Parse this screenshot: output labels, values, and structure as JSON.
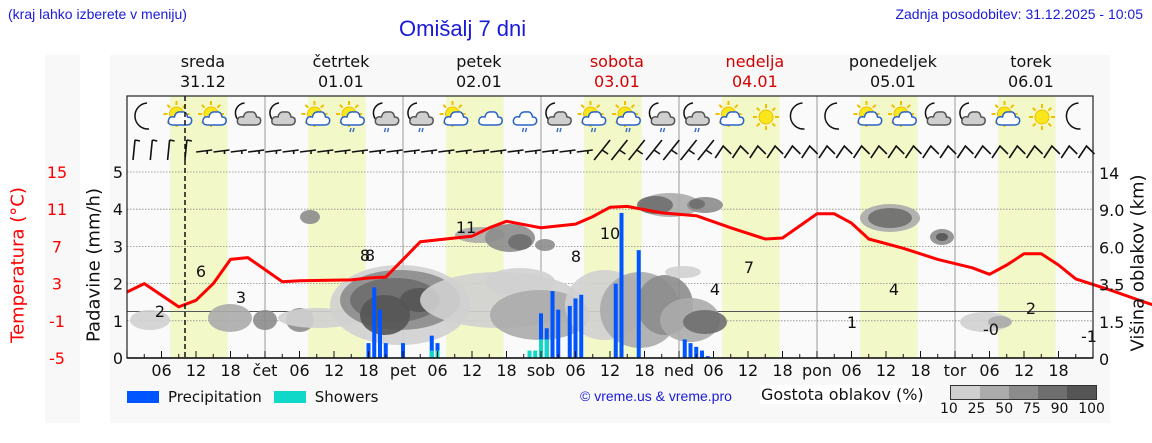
{
  "header": {
    "hint": "(kraj lahko izberete v meniju)",
    "title": "Omišalj 7 dni",
    "updated": "Zadnja posodobitev: 31.12.2025 - 10:05"
  },
  "days": [
    {
      "name": "sreda",
      "date": "31.12",
      "weekend": false
    },
    {
      "name": "četrtek",
      "date": "01.01",
      "weekend": false
    },
    {
      "name": "petek",
      "date": "02.01",
      "weekend": false
    },
    {
      "name": "sobota",
      "date": "03.01",
      "weekend": true
    },
    {
      "name": "nedelja",
      "date": "04.01",
      "weekend": true
    },
    {
      "name": "ponedeljek",
      "date": "05.01",
      "weekend": false
    },
    {
      "name": "torek",
      "date": "06.01",
      "weekend": false
    }
  ],
  "axes": {
    "left_temp_label": "Temperatura (°C)",
    "left_precip_label": "Padavine (mm/h)",
    "right_label": "Višina oblakov (km)",
    "temp_ticks": [
      "15",
      "11",
      "7",
      "3",
      "-1",
      "-5"
    ],
    "precip_ticks": [
      "5",
      "4",
      "3",
      "2",
      "1",
      "0"
    ],
    "cloud_height_ticks": [
      "14",
      "9.0",
      "6.0",
      "3.5",
      "1.5",
      "0"
    ],
    "x_ticks": [
      "06",
      "12",
      "18",
      "čet",
      "06",
      "12",
      "18",
      "pet",
      "06",
      "12",
      "18",
      "sob",
      "06",
      "12",
      "18",
      "ned",
      "06",
      "12",
      "18",
      "pon",
      "06",
      "12",
      "18",
      "tor",
      "06",
      "12",
      "18"
    ]
  },
  "legend": {
    "precipitation": "Precipitation",
    "showers": "Showers",
    "precip_color": "#0055ff",
    "showers_color": "#10d8c8",
    "copyright": "© vreme.us & vreme.pro",
    "cloud_density_label": "Gostota oblakov (%)",
    "cloud_density_ticks": [
      "10",
      "25",
      "50",
      "75",
      "90",
      "100"
    ],
    "cloud_density_colors": [
      "#d0d0d0",
      "#ababab",
      "#8c8c8c",
      "#6e6e6e",
      "#555555"
    ]
  },
  "weather_icons": [
    "moon",
    "sun-cloud",
    "sun-cloud",
    "moon-cloud",
    "moon-cloud",
    "sun-cloud",
    "sun-cloud-rain",
    "moon-cloud-rain",
    "moon-cloud-rain",
    "sun-cloud",
    "cloud",
    "cloud-rain",
    "moon-cloud-rain",
    "sun-cloud-rain",
    "sun-cloud-rain",
    "moon-cloud-rain",
    "moon-cloud-rain",
    "sun-cloud",
    "sun",
    "moon",
    "moon",
    "sun-cloud",
    "sun-cloud",
    "moon-cloud",
    "moon-cloud",
    "sun-cloud",
    "sun",
    "moon"
  ],
  "chart_data": {
    "type": "line",
    "title": "Omišalj 7 dni",
    "xlabel": "",
    "ylabel": "Padavine (mm/h)",
    "y2label": "Temperatura (°C)",
    "y3label": "Višina oblakov (km)",
    "ylim": [
      0,
      5
    ],
    "templim": [
      -5,
      15
    ],
    "grid": true,
    "current_time_marker": "31.12 10:05",
    "temperature_labels": [
      {
        "x": "31.12 04",
        "value": 2
      },
      {
        "x": "31.12 12",
        "value": 6
      },
      {
        "x": "31.12 18",
        "value": 3
      },
      {
        "x": "01.01 18",
        "value": 8
      },
      {
        "x": "02.01 12",
        "value": 11
      },
      {
        "x": "03.01 00",
        "value": 8
      },
      {
        "x": "03.01 12",
        "value": 10
      },
      {
        "x": "04.01 00",
        "value": 4
      },
      {
        "x": "04.01 12",
        "value": 7
      },
      {
        "x": "05.01 06",
        "value": 1
      },
      {
        "x": "05.01 12",
        "value": 4
      },
      {
        "x": "06.01 06",
        "value": 0
      },
      {
        "x": "06.01 12",
        "value": 2
      },
      {
        "x": "07.01 00",
        "value": -1
      }
    ],
    "series": [
      {
        "name": "Temperature",
        "color": "#ff0000",
        "points": [
          [
            0,
            2.1
          ],
          [
            3,
            3.0
          ],
          [
            9,
            0.5
          ],
          [
            12,
            1.2
          ],
          [
            15,
            3.0
          ],
          [
            18,
            5.6
          ],
          [
            21,
            5.8
          ],
          [
            24,
            4.5
          ],
          [
            27,
            3.2
          ],
          [
            30,
            3.3
          ],
          [
            39,
            3.4
          ],
          [
            42,
            3.6
          ],
          [
            45,
            3.7
          ],
          [
            51,
            7.5
          ],
          [
            57,
            7.9
          ],
          [
            60,
            8.1
          ],
          [
            63,
            9.0
          ],
          [
            66,
            9.7
          ],
          [
            72,
            9.0
          ],
          [
            78,
            9.4
          ],
          [
            81,
            10.2
          ],
          [
            84,
            11.2
          ],
          [
            87,
            11.3
          ],
          [
            93,
            10.6
          ],
          [
            99,
            10.3
          ],
          [
            105,
            9.0
          ],
          [
            111,
            7.8
          ],
          [
            114,
            7.9
          ],
          [
            117,
            9.2
          ],
          [
            120,
            10.5
          ],
          [
            123,
            10.5
          ],
          [
            126,
            9.5
          ],
          [
            129,
            7.8
          ],
          [
            135,
            6.8
          ],
          [
            141,
            5.6
          ],
          [
            147,
            4.7
          ],
          [
            150,
            4.0
          ],
          [
            153,
            5.0
          ],
          [
            156,
            6.2
          ],
          [
            159,
            6.2
          ],
          [
            162,
            5.0
          ],
          [
            165,
            3.5
          ],
          [
            171,
            2.3
          ],
          [
            177,
            1.0
          ],
          [
            183,
            -0.2
          ],
          [
            186,
            -0.3
          ],
          [
            189,
            1.5
          ],
          [
            192,
            3.0
          ],
          [
            195,
            3.0
          ],
          [
            198,
            1.9
          ],
          [
            201,
            0.4
          ],
          [
            207,
            0.0
          ],
          [
            213,
            -1.0
          ],
          [
            219,
            -2.0
          ],
          [
            222,
            -2.1
          ],
          [
            225,
            -1.5
          ],
          [
            228,
            -0.4
          ],
          [
            231,
            -0.3
          ],
          [
            234,
            0.0
          ],
          [
            237,
            -1.0
          ],
          [
            243,
            -2.0
          ],
          [
            246,
            -2.5
          ]
        ]
      },
      {
        "name": "Precipitation",
        "type": "bar",
        "color": "#0055ff",
        "bars": [
          {
            "x": "01.01 18",
            "value": 0.4
          },
          {
            "x": "01.01 19",
            "value": 1.9
          },
          {
            "x": "01.01 20",
            "value": 1.3
          },
          {
            "x": "01.01 21",
            "value": 0.4
          },
          {
            "x": "02.01 00",
            "value": 0.4
          },
          {
            "x": "02.01 05",
            "value": 0.6
          },
          {
            "x": "02.01 06",
            "value": 0.4
          },
          {
            "x": "03.01 00",
            "value": 1.2
          },
          {
            "x": "03.01 01",
            "value": 0.8
          },
          {
            "x": "03.01 02",
            "value": 1.8
          },
          {
            "x": "03.01 03",
            "value": 1.3
          },
          {
            "x": "03.01 05",
            "value": 1.4
          },
          {
            "x": "03.01 06",
            "value": 1.6
          },
          {
            "x": "03.01 07",
            "value": 1.7
          },
          {
            "x": "03.01 13",
            "value": 2.0
          },
          {
            "x": "03.01 14",
            "value": 3.9
          },
          {
            "x": "03.01 17",
            "value": 2.9
          },
          {
            "x": "04.01 01",
            "value": 0.5
          },
          {
            "x": "04.01 02",
            "value": 0.4
          },
          {
            "x": "04.01 03",
            "value": 0.3
          },
          {
            "x": "04.01 04",
            "value": 0.2
          },
          {
            "x": "04.01 05",
            "value": 0.05
          }
        ]
      },
      {
        "name": "Showers",
        "type": "bar",
        "color": "#10d8c8",
        "bars": [
          {
            "x": "02.01 05",
            "value": 0.2
          },
          {
            "x": "02.01 06",
            "value": 0.2
          },
          {
            "x": "02.01 22",
            "value": 0.2
          },
          {
            "x": "02.01 23",
            "value": 0.2
          },
          {
            "x": "03.01 00",
            "value": 0.5
          },
          {
            "x": "03.01 01",
            "value": 0.5
          }
        ]
      }
    ]
  }
}
